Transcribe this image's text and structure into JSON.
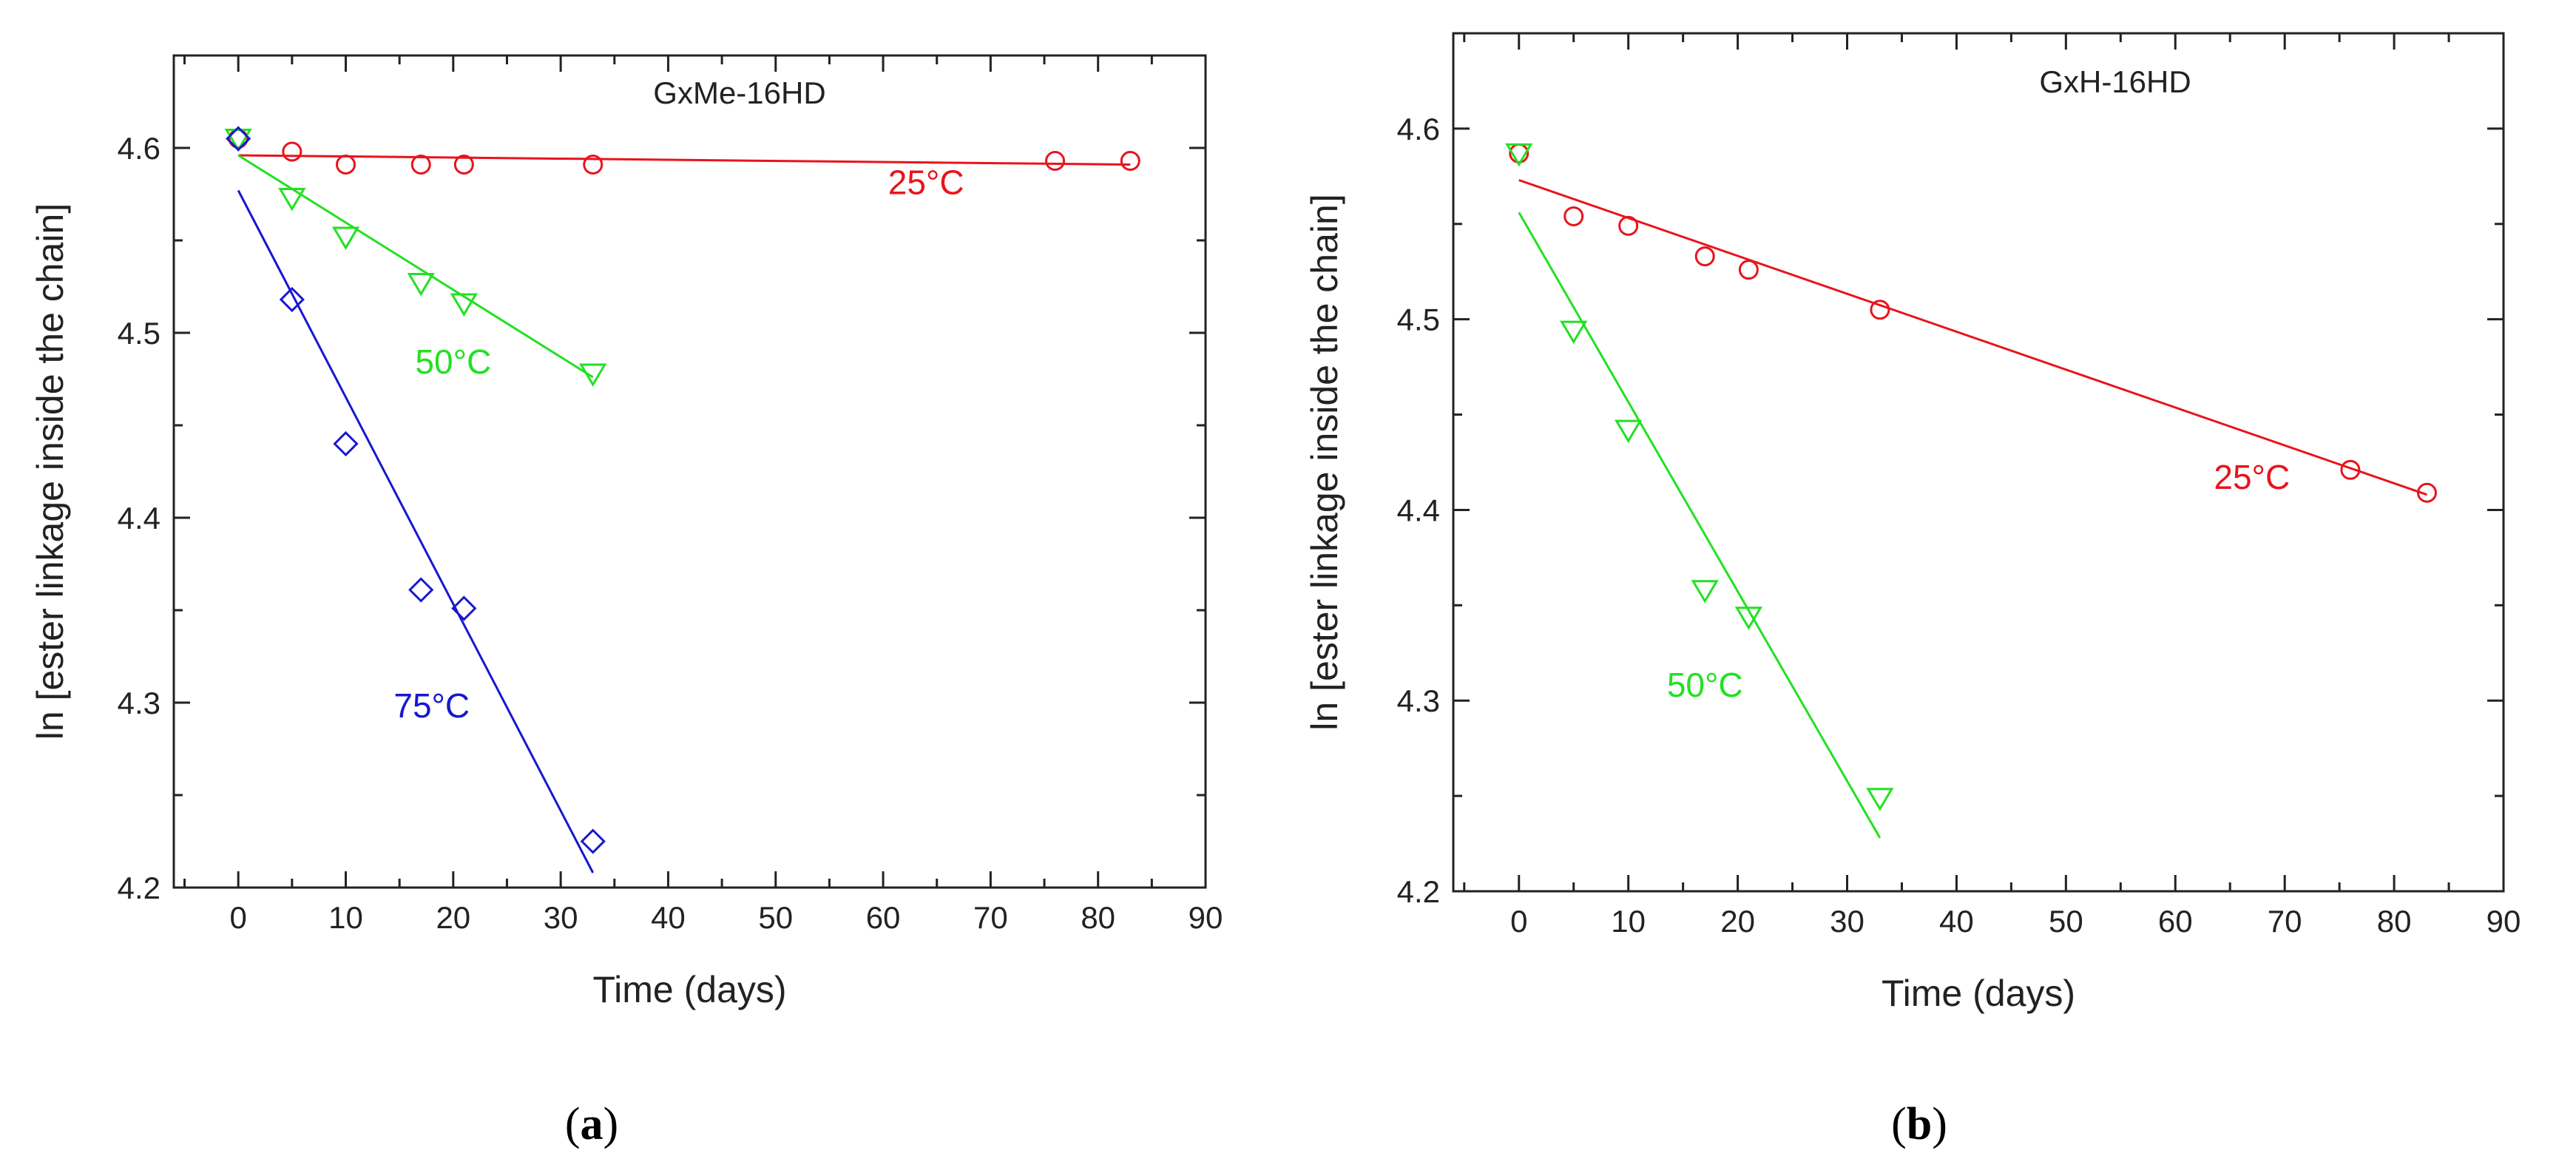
{
  "chart_data": [
    {
      "type": "scatter",
      "panel_id": "a",
      "caption_open": "(",
      "caption_letter": "a",
      "caption_close": ")",
      "title": "GxMe-16HD",
      "xlabel": "Time (days)",
      "ylabel": "ln [ester linkage inside the chain]",
      "xlim": [
        -6,
        90
      ],
      "ylim": [
        4.2,
        4.65
      ],
      "xticks": [
        0,
        10,
        20,
        30,
        40,
        50,
        60,
        70,
        80,
        90
      ],
      "yticks": [
        4.2,
        4.3,
        4.4,
        4.5,
        4.6
      ],
      "x_minor_step": 5,
      "y_minor_step": 0.05,
      "grid": false,
      "series": [
        {
          "name": "25°C",
          "color": "#e8141c",
          "marker": "circle",
          "points": [
            [
              0,
              4.605
            ],
            [
              5,
              4.598
            ],
            [
              10,
              4.591
            ],
            [
              17,
              4.591
            ],
            [
              21,
              4.591
            ],
            [
              33,
              4.591
            ],
            [
              76,
              4.593
            ],
            [
              83,
              4.593
            ]
          ],
          "fit": [
            [
              0,
              4.596
            ],
            [
              83,
              4.591
            ]
          ],
          "label_pos": [
            64,
            4.575
          ]
        },
        {
          "name": "50°C",
          "color": "#22e122",
          "marker": "triangle-down",
          "points": [
            [
              0,
              4.605
            ],
            [
              5,
              4.573
            ],
            [
              10,
              4.552
            ],
            [
              17,
              4.527
            ],
            [
              21,
              4.516
            ],
            [
              33,
              4.478
            ]
          ],
          "fit": [
            [
              0,
              4.596
            ],
            [
              33,
              4.476
            ]
          ],
          "label_pos": [
            20,
            4.478
          ]
        },
        {
          "name": "75°C",
          "color": "#1717d0",
          "marker": "diamond",
          "points": [
            [
              0,
              4.605
            ],
            [
              5,
              4.518
            ],
            [
              10,
              4.44
            ],
            [
              17,
              4.361
            ],
            [
              21,
              4.351
            ],
            [
              33,
              4.225
            ]
          ],
          "fit": [
            [
              0,
              4.577
            ],
            [
              33,
              4.208
            ]
          ],
          "label_pos": [
            18,
            4.292
          ]
        }
      ]
    },
    {
      "type": "scatter",
      "panel_id": "b",
      "caption_open": "(",
      "caption_letter": "b",
      "caption_close": ")",
      "title": "GxH-16HD",
      "xlabel": "Time (days)",
      "ylabel": "ln [ester linkage inside the chain]",
      "xlim": [
        -6,
        90
      ],
      "ylim": [
        4.2,
        4.65
      ],
      "xticks": [
        0,
        10,
        20,
        30,
        40,
        50,
        60,
        70,
        80,
        90
      ],
      "yticks": [
        4.2,
        4.3,
        4.4,
        4.5,
        4.6
      ],
      "x_minor_step": 5,
      "y_minor_step": 0.05,
      "grid": false,
      "series": [
        {
          "name": "25°C",
          "color": "#e8141c",
          "marker": "circle",
          "points": [
            [
              0,
              4.587
            ],
            [
              5,
              4.554
            ],
            [
              10,
              4.549
            ],
            [
              17,
              4.533
            ],
            [
              21,
              4.526
            ],
            [
              33,
              4.505
            ],
            [
              76,
              4.421
            ],
            [
              83,
              4.409
            ]
          ],
          "fit": [
            [
              0,
              4.573
            ],
            [
              83,
              4.408
            ]
          ],
          "label_pos": [
            67,
            4.411
          ]
        },
        {
          "name": "50°C",
          "color": "#22e122",
          "marker": "triangle-down",
          "points": [
            [
              0,
              4.587
            ],
            [
              5,
              4.494
            ],
            [
              10,
              4.442
            ],
            [
              17,
              4.358
            ],
            [
              21,
              4.344
            ],
            [
              33,
              4.249
            ]
          ],
          "fit": [
            [
              0,
              4.556
            ],
            [
              33,
              4.228
            ]
          ],
          "label_pos": [
            17,
            4.302
          ]
        }
      ]
    }
  ]
}
